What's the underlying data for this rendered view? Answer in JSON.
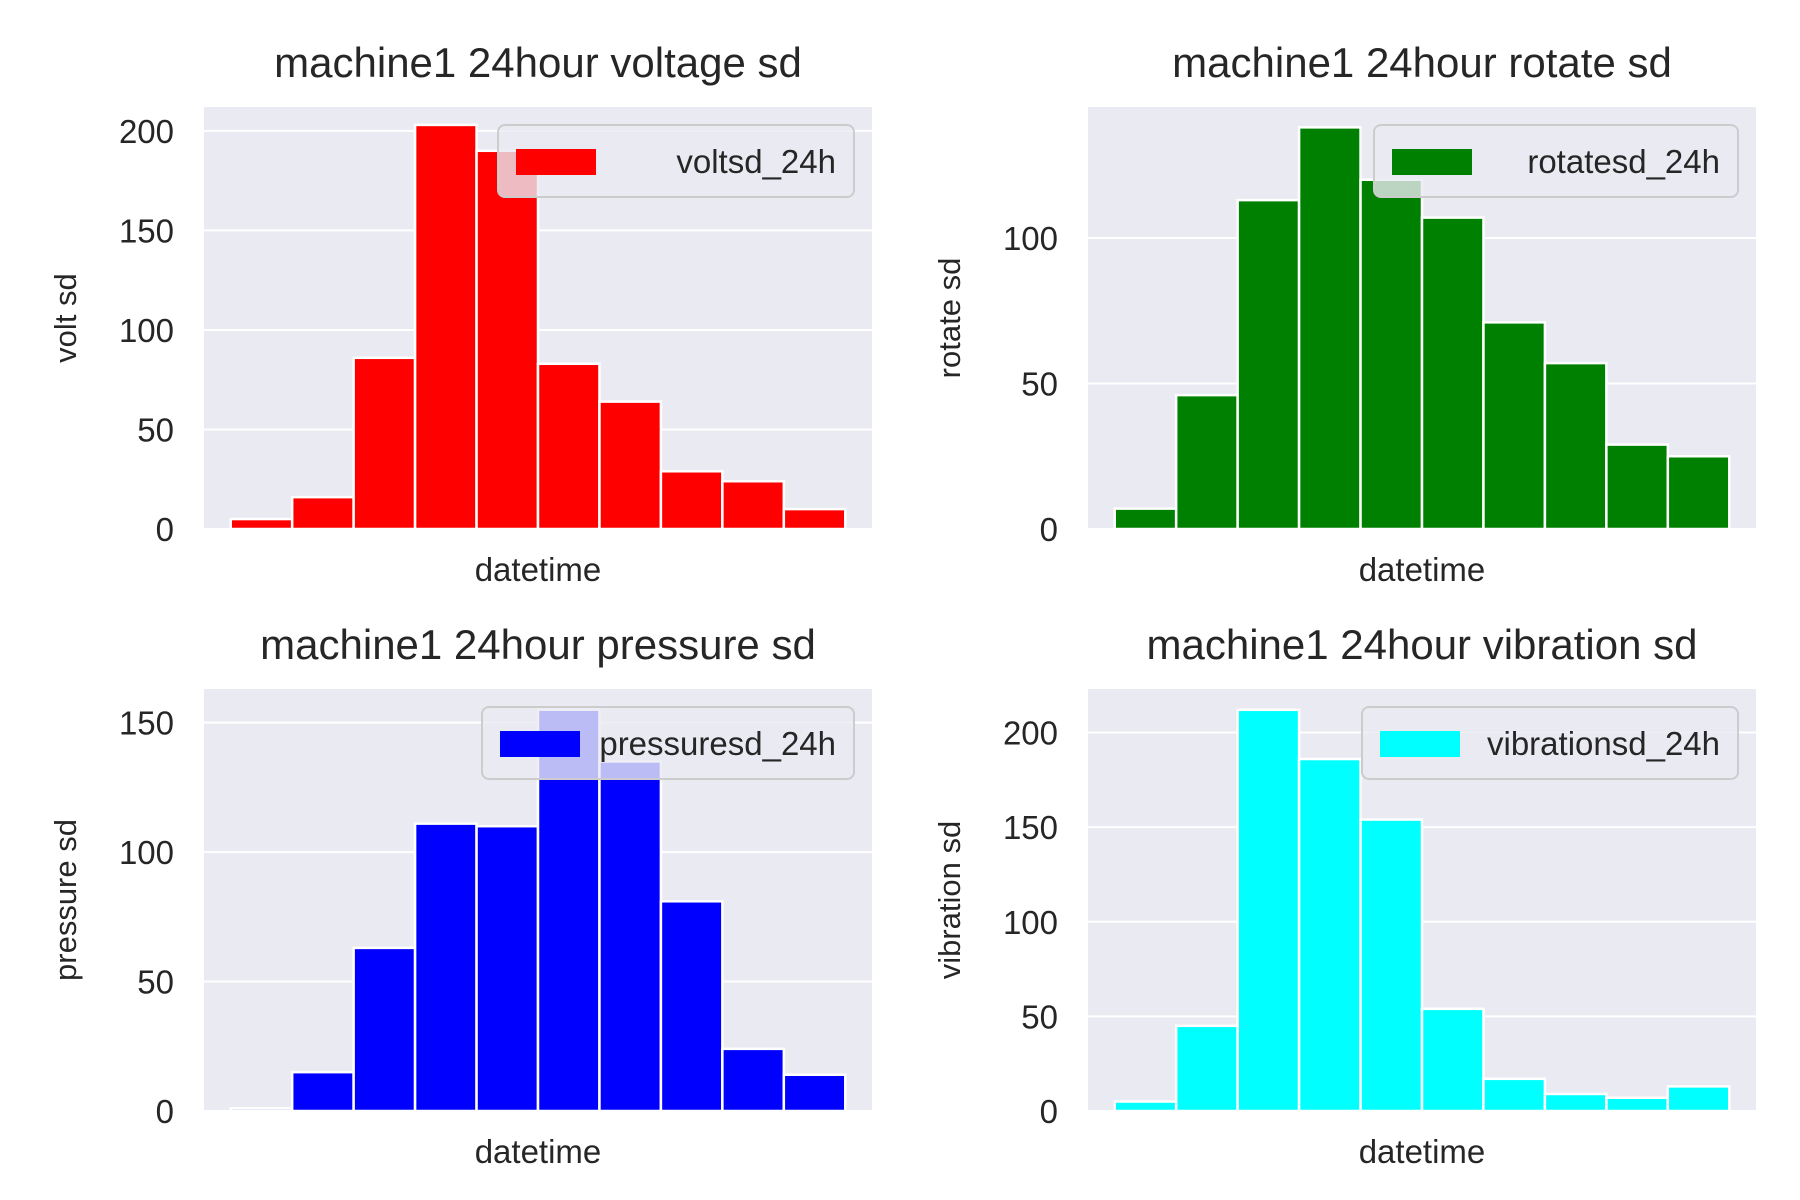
{
  "chart_data": [
    {
      "type": "bar",
      "title": "machine1 24hour voltage sd",
      "xlabel": "datetime",
      "ylabel": "volt sd",
      "ylim": [
        0,
        212
      ],
      "yticks": [
        0,
        50,
        100,
        150,
        200
      ],
      "values": [
        5,
        16,
        86,
        203,
        190,
        83,
        64,
        29,
        24,
        10
      ],
      "color": "#ff0000",
      "legend": {
        "label": "voltsd_24h",
        "position": "upper right"
      },
      "grid": true
    },
    {
      "type": "bar",
      "title": "machine1 24hour rotate sd",
      "xlabel": "datetime",
      "ylabel": "rotate sd",
      "ylim": [
        0,
        145
      ],
      "yticks": [
        0,
        50,
        100
      ],
      "values": [
        7,
        46,
        113,
        138,
        120,
        107,
        71,
        57,
        29,
        25
      ],
      "color": "#008000",
      "legend": {
        "label": "rotatesd_24h",
        "position": "upper right"
      },
      "grid": true
    },
    {
      "type": "bar",
      "title": "machine1 24hour pressure sd",
      "xlabel": "datetime",
      "ylabel": "pressure sd",
      "ylim": [
        0,
        163
      ],
      "yticks": [
        0,
        50,
        100,
        150
      ],
      "values": [
        1,
        15,
        63,
        111,
        110,
        155,
        135,
        81,
        24,
        14
      ],
      "color": "#0000ff",
      "legend": {
        "label": "pressuresd_24h",
        "position": "upper right"
      },
      "grid": true
    },
    {
      "type": "bar",
      "title": "machine1 24hour vibration sd",
      "xlabel": "datetime",
      "ylabel": "vibration sd",
      "ylim": [
        0,
        223
      ],
      "yticks": [
        0,
        50,
        100,
        150,
        200
      ],
      "values": [
        5,
        45,
        212,
        186,
        154,
        54,
        17,
        9,
        7,
        13
      ],
      "color": "#00ffff",
      "legend": {
        "label": "vibrationsd_24h",
        "position": "upper right"
      },
      "grid": true
    }
  ]
}
